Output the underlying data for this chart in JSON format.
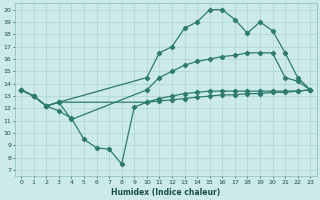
{
  "bg_color": "#cceaea",
  "grid_color": "#aad4d4",
  "line_color": "#2d7a6e",
  "xlabel": "Humidex (Indice chaleur)",
  "xlim": [
    -0.5,
    23.5
  ],
  "ylim": [
    6.5,
    20.5
  ],
  "yticks": [
    7,
    8,
    9,
    10,
    11,
    12,
    13,
    14,
    15,
    16,
    17,
    18,
    19,
    20
  ],
  "xticks": [
    0,
    1,
    2,
    3,
    4,
    5,
    6,
    7,
    8,
    9,
    10,
    11,
    12,
    13,
    14,
    15,
    16,
    17,
    18,
    19,
    20,
    21,
    22,
    23
  ],
  "line_top_x": [
    0,
    1,
    2,
    3,
    10,
    11,
    12,
    13,
    14,
    15,
    16,
    17,
    18,
    19,
    20,
    21,
    22,
    23
  ],
  "line_top_y": [
    13.5,
    13.0,
    12.2,
    12.5,
    14.5,
    16.5,
    17.0,
    18.5,
    19.0,
    20.0,
    20.0,
    19.2,
    18.1,
    19.0,
    18.3,
    16.5,
    14.5,
    13.5
  ],
  "line_mid_x": [
    0,
    1,
    2,
    3,
    4,
    10,
    11,
    12,
    13,
    14,
    15,
    16,
    17,
    18,
    19,
    20,
    21,
    22,
    23
  ],
  "line_mid_y": [
    13.5,
    13.0,
    12.2,
    12.5,
    11.1,
    13.5,
    14.5,
    15.0,
    15.5,
    15.8,
    16.0,
    16.2,
    16.3,
    16.5,
    16.5,
    16.5,
    14.5,
    14.2,
    13.5
  ],
  "line_dip_x": [
    0,
    1,
    2,
    3,
    4,
    5,
    6,
    7,
    8,
    9,
    10,
    11,
    12,
    13,
    14,
    15,
    16,
    17,
    18,
    19,
    20,
    21,
    22,
    23
  ],
  "line_dip_y": [
    13.5,
    13.0,
    12.2,
    11.8,
    11.2,
    9.5,
    8.8,
    8.7,
    7.5,
    12.1,
    12.5,
    12.8,
    13.0,
    13.2,
    13.3,
    13.4,
    13.4,
    13.4,
    13.4,
    13.4,
    13.4,
    13.4,
    13.4,
    13.5
  ],
  "line_flat_x": [
    0,
    1,
    2,
    3,
    10,
    11,
    12,
    13,
    14,
    15,
    16,
    17,
    18,
    19,
    20,
    21,
    22,
    23
  ],
  "line_flat_y": [
    13.5,
    13.0,
    12.2,
    12.5,
    12.5,
    12.6,
    12.7,
    12.8,
    12.9,
    13.0,
    13.1,
    13.1,
    13.2,
    13.2,
    13.3,
    13.3,
    13.4,
    13.5
  ]
}
